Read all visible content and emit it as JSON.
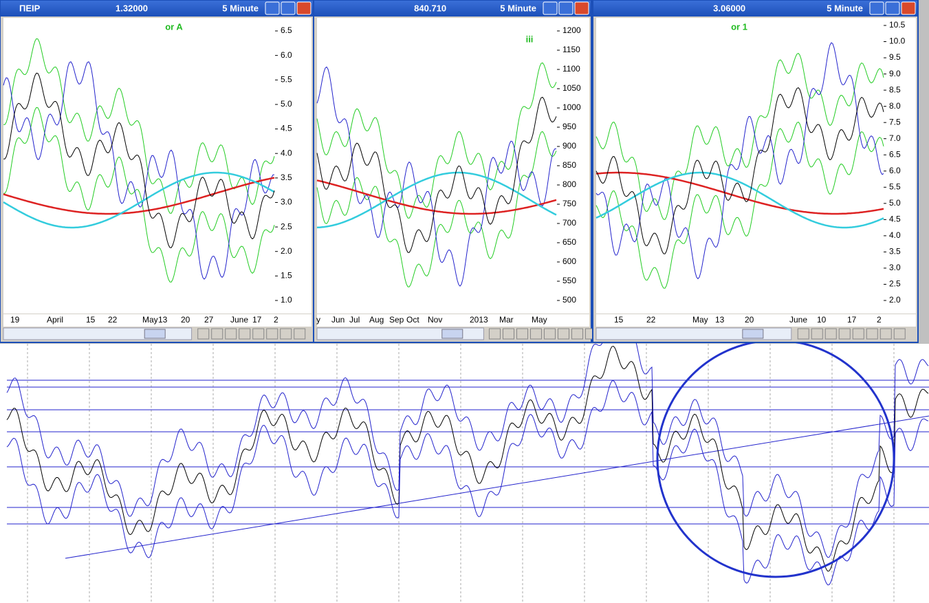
{
  "windows": [
    {
      "symbol": "ΠΕΙΡ",
      "price": "1.32000",
      "interval": "5 Minute",
      "y_axis": [
        "6.5",
        "6.0",
        "5.5",
        "5.0",
        "4.5",
        "4.0",
        "3.5",
        "3.0",
        "2.5",
        "2.0",
        "1.5",
        "1.0"
      ],
      "x_axis": [
        "19",
        "April",
        "15",
        "22",
        "May",
        "13",
        "20",
        "27",
        "June",
        "17",
        "2"
      ],
      "annotation": "or A"
    },
    {
      "price": "840.710",
      "interval": "5 Minute",
      "y_axis": [
        "1200",
        "1150",
        "1100",
        "1050",
        "1000",
        "950",
        "900",
        "850",
        "800",
        "750",
        "700",
        "650",
        "600",
        "550",
        "500"
      ],
      "x_axis": [
        "y",
        "Jun",
        "Jul",
        "Aug",
        "Sep",
        "Oct",
        "Nov",
        "2013",
        "Mar",
        "May"
      ],
      "annotation": "iii"
    },
    {
      "price": "3.06000",
      "interval": "5 Minute",
      "y_axis": [
        "10.5",
        "10.0",
        "9.5",
        "9.0",
        "8.5",
        "8.0",
        "7.5",
        "7.0",
        "6.5",
        "6.0",
        "5.5",
        "5.0",
        "4.5",
        "4.0",
        "3.5",
        "3.0",
        "2.5",
        "2.0"
      ],
      "x_axis": [
        "15",
        "22",
        "May",
        "13",
        "20",
        "June",
        "10",
        "17",
        "2"
      ],
      "annotation": "or 1"
    }
  ]
}
